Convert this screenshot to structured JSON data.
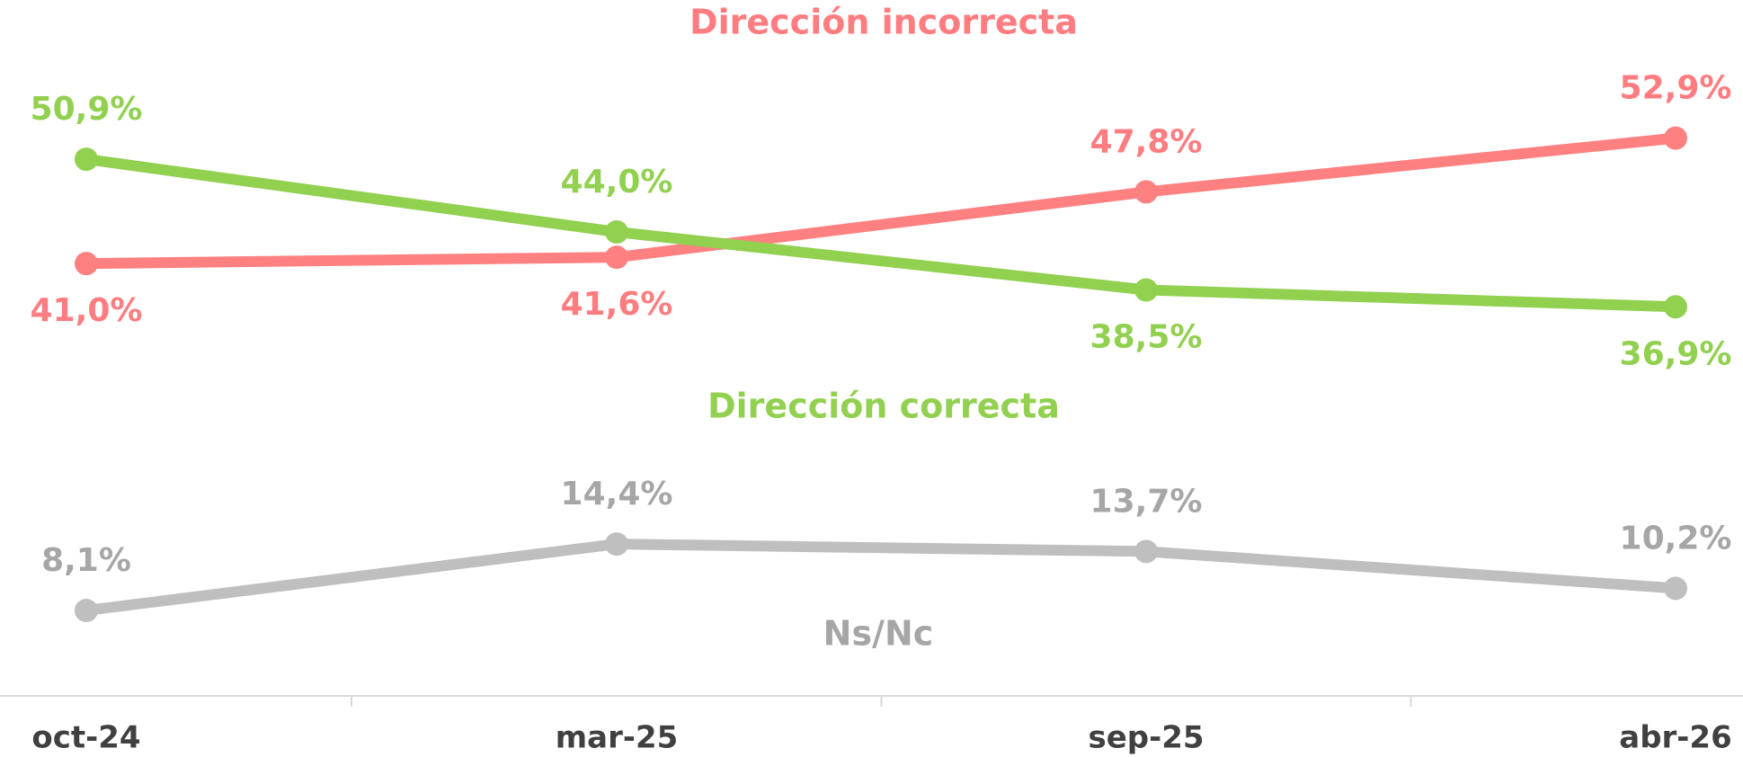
{
  "chart_data": {
    "type": "line",
    "categories": [
      "oct-24",
      "mar-25",
      "sep-25",
      "abr-26"
    ],
    "series": [
      {
        "name": "Dirección incorrecta",
        "color": "#ff8080",
        "values": [
          41.0,
          41.6,
          47.8,
          52.9
        ],
        "value_labels": [
          "41,0%",
          "41,6%",
          "47,8%",
          "52,9%"
        ]
      },
      {
        "name": "Dirección correcta",
        "color": "#92d050",
        "values": [
          50.9,
          44.0,
          38.5,
          36.9
        ],
        "value_labels": [
          "50,9%",
          "44,0%",
          "38,5%",
          "36,9%"
        ]
      },
      {
        "name": "Ns/Nc",
        "color": "#bfbfbf",
        "values": [
          8.1,
          14.4,
          13.7,
          10.2
        ],
        "value_labels": [
          "8,1%",
          "14,4%",
          "13,7%",
          "10,2%"
        ]
      }
    ],
    "ylim": [
      0,
      66
    ]
  }
}
